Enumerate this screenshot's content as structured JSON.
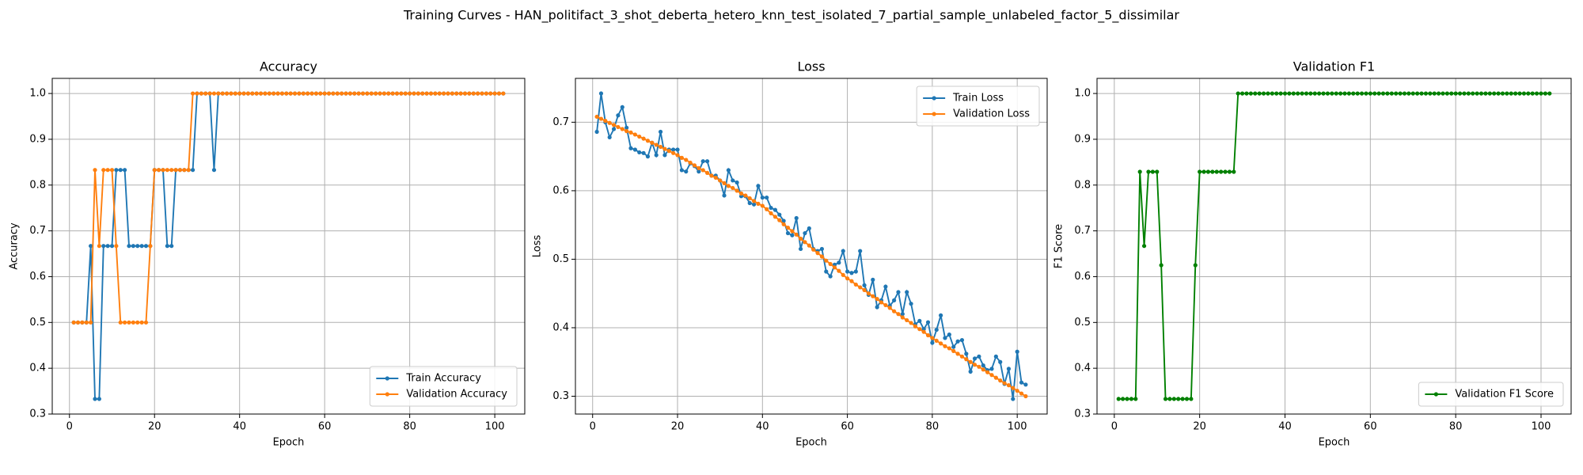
{
  "title": "Training Curves - HAN_politifact_3_shot_deberta_hetero_knn_test_isolated_7_partial_sample_unlabeled_factor_5_dissimilar",
  "chart_data": [
    {
      "type": "line",
      "title": "Accuracy",
      "x_label": "Epoch",
      "y_label": "Accuracy",
      "x": [
        1,
        2,
        3,
        4,
        5,
        6,
        7,
        8,
        9,
        10,
        11,
        12,
        13,
        14,
        15,
        16,
        17,
        18,
        19,
        20,
        21,
        22,
        23,
        24,
        25,
        26,
        27,
        28,
        29,
        30,
        31,
        32,
        33,
        34,
        35,
        36,
        37,
        38,
        39,
        40,
        41,
        42,
        43,
        44,
        45,
        46,
        47,
        48,
        49,
        50,
        51,
        52,
        53,
        54,
        55,
        56,
        57,
        58,
        59,
        60,
        61,
        62,
        63,
        64,
        65,
        66,
        67,
        68,
        69,
        70,
        71,
        72,
        73,
        74,
        75,
        76,
        77,
        78,
        79,
        80,
        81,
        82,
        83,
        84,
        85,
        86,
        87,
        88,
        89,
        90,
        91,
        92,
        93,
        94,
        95,
        96,
        97,
        98,
        99,
        100,
        101,
        102
      ],
      "series": [
        {
          "name": "Train Accuracy",
          "color": "#1f77b4",
          "values": [
            0.5,
            0.5,
            0.5,
            0.5,
            0.667,
            0.333,
            0.333,
            0.667,
            0.667,
            0.667,
            0.833,
            0.833,
            0.833,
            0.667,
            0.667,
            0.667,
            0.667,
            0.667,
            0.667,
            0.833,
            0.833,
            0.833,
            0.667,
            0.667,
            0.833,
            0.833,
            0.833,
            0.833,
            0.833,
            1,
            1,
            1,
            1,
            0.833,
            1,
            1,
            1,
            1,
            1,
            1,
            1,
            1,
            1,
            1,
            1,
            1,
            1,
            1,
            1,
            1,
            1,
            1,
            1,
            1,
            1,
            1,
            1,
            1,
            1,
            1,
            1,
            1,
            1,
            1,
            1,
            1,
            1,
            1,
            1,
            1,
            1,
            1,
            1,
            1,
            1,
            1,
            1,
            1,
            1,
            1,
            1,
            1,
            1,
            1,
            1,
            1,
            1,
            1,
            1,
            1,
            1,
            1,
            1,
            1,
            1,
            1,
            1,
            1,
            1,
            1,
            1,
            1
          ]
        },
        {
          "name": "Validation Accuracy",
          "color": "#ff7f0e",
          "values": [
            0.5,
            0.5,
            0.5,
            0.5,
            0.5,
            0.833,
            0.667,
            0.833,
            0.833,
            0.833,
            0.667,
            0.5,
            0.5,
            0.5,
            0.5,
            0.5,
            0.5,
            0.5,
            0.667,
            0.833,
            0.833,
            0.833,
            0.833,
            0.833,
            0.833,
            0.833,
            0.833,
            0.833,
            1,
            1,
            1,
            1,
            1,
            1,
            1,
            1,
            1,
            1,
            1,
            1,
            1,
            1,
            1,
            1,
            1,
            1,
            1,
            1,
            1,
            1,
            1,
            1,
            1,
            1,
            1,
            1,
            1,
            1,
            1,
            1,
            1,
            1,
            1,
            1,
            1,
            1,
            1,
            1,
            1,
            1,
            1,
            1,
            1,
            1,
            1,
            1,
            1,
            1,
            1,
            1,
            1,
            1,
            1,
            1,
            1,
            1,
            1,
            1,
            1,
            1,
            1,
            1,
            1,
            1,
            1,
            1,
            1,
            1,
            1,
            1,
            1,
            1
          ]
        }
      ],
      "xlim": [
        -4.05,
        107.05
      ],
      "xticks": [
        0,
        20,
        40,
        60,
        80,
        100
      ],
      "ylim": [
        0.3,
        1.033
      ],
      "yticks": [
        0.3,
        0.4,
        0.5,
        0.6,
        0.7,
        0.8,
        0.9,
        {
          "value": 1,
          "label": "1.0"
        }
      ],
      "grid": true,
      "legend": "lower right"
    },
    {
      "type": "line",
      "title": "Loss",
      "x_label": "Epoch",
      "y_label": "Loss",
      "x": [
        1,
        2,
        3,
        4,
        5,
        6,
        7,
        8,
        9,
        10,
        11,
        12,
        13,
        14,
        15,
        16,
        17,
        18,
        19,
        20,
        21,
        22,
        23,
        24,
        25,
        26,
        27,
        28,
        29,
        30,
        31,
        32,
        33,
        34,
        35,
        36,
        37,
        38,
        39,
        40,
        41,
        42,
        43,
        44,
        45,
        46,
        47,
        48,
        49,
        50,
        51,
        52,
        53,
        54,
        55,
        56,
        57,
        58,
        59,
        60,
        61,
        62,
        63,
        64,
        65,
        66,
        67,
        68,
        69,
        70,
        71,
        72,
        73,
        74,
        75,
        76,
        77,
        78,
        79,
        80,
        81,
        82,
        83,
        84,
        85,
        86,
        87,
        88,
        89,
        90,
        91,
        92,
        93,
        94,
        95,
        96,
        97,
        98,
        99,
        100,
        101,
        102
      ],
      "series": [
        {
          "name": "Train Loss",
          "color": "#1f77b4",
          "values": [
            0.686,
            0.742,
            0.7,
            0.678,
            0.69,
            0.71,
            0.722,
            0.692,
            0.662,
            0.66,
            0.656,
            0.655,
            0.65,
            0.67,
            0.652,
            0.686,
            0.652,
            0.66,
            0.66,
            0.66,
            0.63,
            0.628,
            0.64,
            0.636,
            0.628,
            0.643,
            0.643,
            0.622,
            0.622,
            0.615,
            0.593,
            0.63,
            0.615,
            0.612,
            0.592,
            0.592,
            0.582,
            0.58,
            0.607,
            0.59,
            0.59,
            0.575,
            0.572,
            0.565,
            0.556,
            0.538,
            0.535,
            0.56,
            0.515,
            0.538,
            0.545,
            0.515,
            0.512,
            0.515,
            0.482,
            0.475,
            0.492,
            0.495,
            0.512,
            0.482,
            0.48,
            0.482,
            0.512,
            0.462,
            0.448,
            0.47,
            0.43,
            0.44,
            0.46,
            0.432,
            0.44,
            0.452,
            0.42,
            0.452,
            0.435,
            0.405,
            0.41,
            0.398,
            0.408,
            0.378,
            0.397,
            0.418,
            0.385,
            0.39,
            0.372,
            0.38,
            0.382,
            0.362,
            0.336,
            0.355,
            0.358,
            0.345,
            0.338,
            0.34,
            0.358,
            0.35,
            0.318,
            0.34,
            0.296,
            0.365,
            0.32,
            0.317
          ]
        },
        {
          "name": "Validation Loss",
          "color": "#ff7f0e",
          "values": [
            0.708,
            0.705,
            0.702,
            0.699,
            0.696,
            0.693,
            0.69,
            0.687,
            0.685,
            0.682,
            0.679,
            0.676,
            0.673,
            0.67,
            0.667,
            0.664,
            0.661,
            0.658,
            0.655,
            0.652,
            0.648,
            0.645,
            0.641,
            0.637,
            0.633,
            0.63,
            0.626,
            0.622,
            0.619,
            0.615,
            0.611,
            0.607,
            0.604,
            0.6,
            0.596,
            0.593,
            0.589,
            0.585,
            0.581,
            0.578,
            0.573,
            0.567,
            0.562,
            0.557,
            0.551,
            0.546,
            0.541,
            0.536,
            0.53,
            0.525,
            0.52,
            0.514,
            0.509,
            0.504,
            0.498,
            0.493,
            0.488,
            0.483,
            0.477,
            0.472,
            0.468,
            0.463,
            0.459,
            0.455,
            0.45,
            0.446,
            0.442,
            0.437,
            0.433,
            0.429,
            0.424,
            0.42,
            0.415,
            0.411,
            0.407,
            0.402,
            0.398,
            0.394,
            0.389,
            0.385,
            0.381,
            0.377,
            0.373,
            0.37,
            0.366,
            0.362,
            0.358,
            0.354,
            0.35,
            0.346,
            0.343,
            0.339,
            0.335,
            0.331,
            0.327,
            0.323,
            0.319,
            0.316,
            0.312,
            0.308,
            0.304,
            0.3
          ]
        }
      ],
      "xlim": [
        -4.05,
        107.05
      ],
      "xticks": [
        0,
        20,
        40,
        60,
        80,
        100
      ],
      "ylim": [
        0.274,
        0.764
      ],
      "yticks": [
        0.3,
        0.4,
        0.5,
        0.6,
        0.7
      ],
      "grid": true,
      "legend": "upper right"
    },
    {
      "type": "line",
      "title": "Validation F1",
      "x_label": "Epoch",
      "y_label": "F1 Score",
      "x": [
        1,
        2,
        3,
        4,
        5,
        6,
        7,
        8,
        9,
        10,
        11,
        12,
        13,
        14,
        15,
        16,
        17,
        18,
        19,
        20,
        21,
        22,
        23,
        24,
        25,
        26,
        27,
        28,
        29,
        30,
        31,
        32,
        33,
        34,
        35,
        36,
        37,
        38,
        39,
        40,
        41,
        42,
        43,
        44,
        45,
        46,
        47,
        48,
        49,
        50,
        51,
        52,
        53,
        54,
        55,
        56,
        57,
        58,
        59,
        60,
        61,
        62,
        63,
        64,
        65,
        66,
        67,
        68,
        69,
        70,
        71,
        72,
        73,
        74,
        75,
        76,
        77,
        78,
        79,
        80,
        81,
        82,
        83,
        84,
        85,
        86,
        87,
        88,
        89,
        90,
        91,
        92,
        93,
        94,
        95,
        96,
        97,
        98,
        99,
        100,
        101,
        102
      ],
      "series": [
        {
          "name": "Validation F1 Score",
          "color": "#008000",
          "values": [
            0.333,
            0.333,
            0.333,
            0.333,
            0.333,
            0.829,
            0.667,
            0.829,
            0.829,
            0.829,
            0.625,
            0.333,
            0.333,
            0.333,
            0.333,
            0.333,
            0.333,
            0.333,
            0.625,
            0.829,
            0.829,
            0.829,
            0.829,
            0.829,
            0.829,
            0.829,
            0.829,
            0.829,
            1,
            1,
            1,
            1,
            1,
            1,
            1,
            1,
            1,
            1,
            1,
            1,
            1,
            1,
            1,
            1,
            1,
            1,
            1,
            1,
            1,
            1,
            1,
            1,
            1,
            1,
            1,
            1,
            1,
            1,
            1,
            1,
            1,
            1,
            1,
            1,
            1,
            1,
            1,
            1,
            1,
            1,
            1,
            1,
            1,
            1,
            1,
            1,
            1,
            1,
            1,
            1,
            1,
            1,
            1,
            1,
            1,
            1,
            1,
            1,
            1,
            1,
            1,
            1,
            1,
            1,
            1,
            1,
            1,
            1,
            1,
            1,
            1,
            1
          ]
        }
      ],
      "xlim": [
        -4.05,
        107.05
      ],
      "xticks": [
        0,
        20,
        40,
        60,
        80,
        100
      ],
      "ylim": [
        0.3,
        1.033
      ],
      "yticks": [
        0.3,
        0.4,
        0.5,
        0.6,
        0.7,
        0.8,
        0.9,
        {
          "value": 1,
          "label": "1.0"
        }
      ],
      "grid": true,
      "legend": "lower right"
    }
  ]
}
